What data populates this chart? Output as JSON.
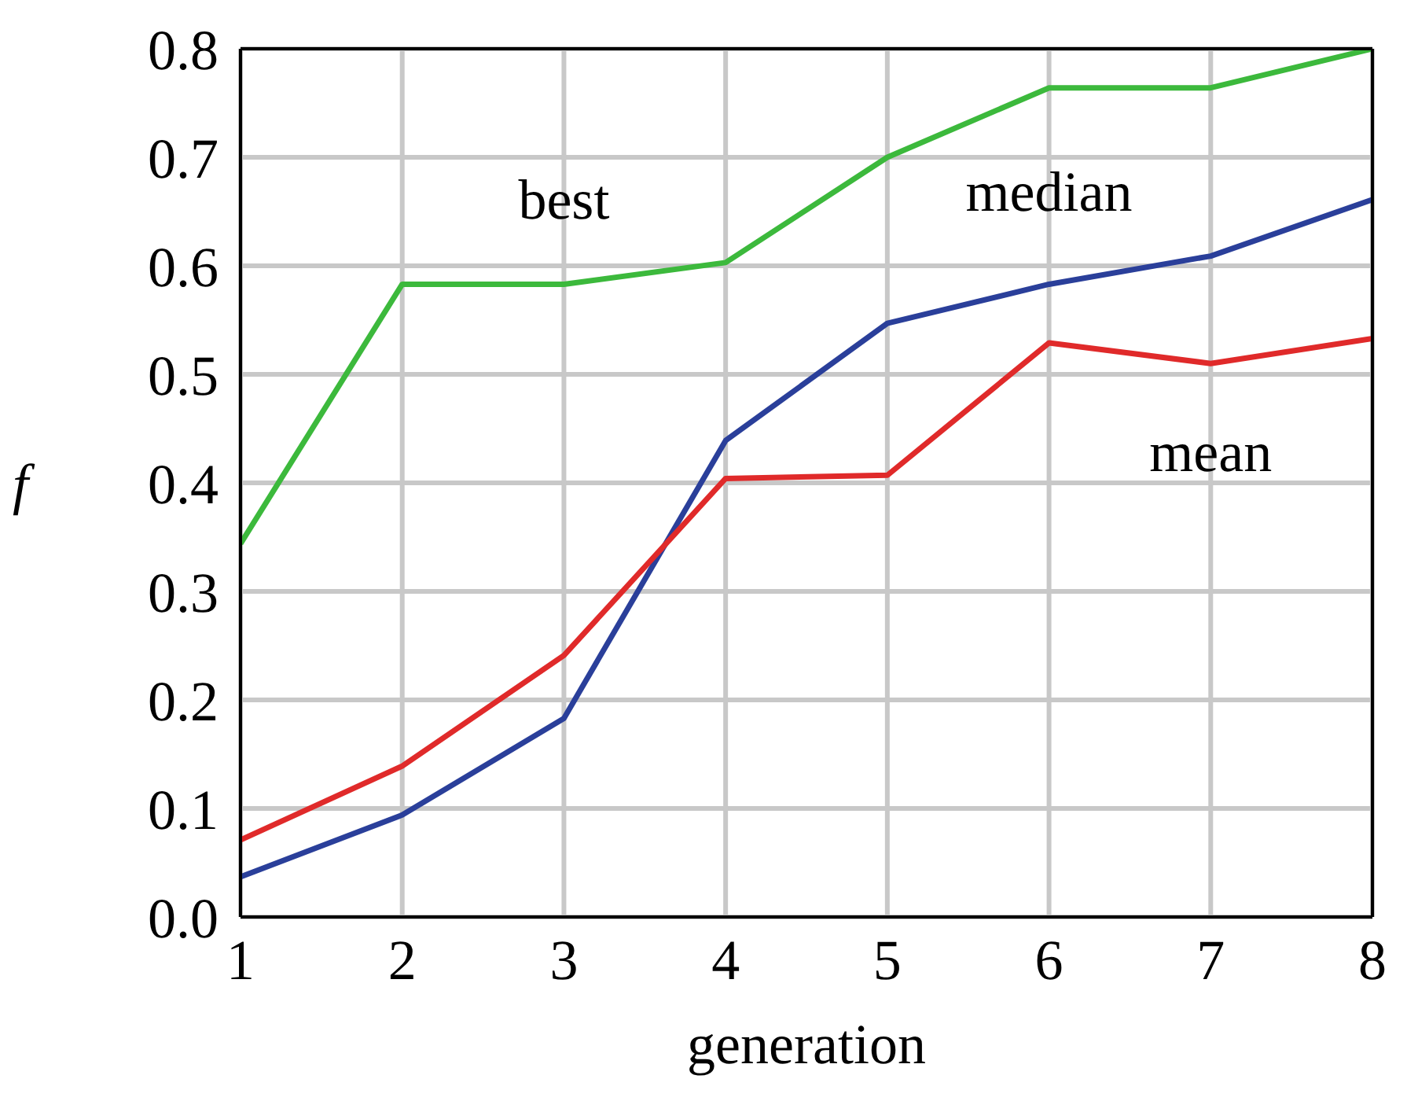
{
  "chart_data": {
    "type": "line",
    "xlabel": "generation",
    "ylabel": "f",
    "x": [
      1,
      2,
      3,
      4,
      5,
      6,
      7,
      8
    ],
    "xlim": [
      1,
      8
    ],
    "xticks": [
      1,
      2,
      3,
      4,
      5,
      6,
      7,
      8
    ],
    "ylim": [
      0,
      0.8
    ],
    "yticks": [
      {
        "value": 0,
        "label": "0.0"
      },
      0.1,
      0.2,
      0.3,
      0.4,
      0.5,
      0.6,
      0.7,
      0.8
    ],
    "grid": true,
    "legend": false,
    "marker": "none",
    "line_style": "solid",
    "series": [
      {
        "name": "best",
        "color": "#3cb93c",
        "values": [
          0.344,
          0.583,
          0.583,
          0.603,
          0.7,
          0.764,
          0.764,
          0.8
        ]
      },
      {
        "name": "median",
        "color": "#2a3f9a",
        "values": [
          0.037,
          0.094,
          0.183,
          0.439,
          0.547,
          0.583,
          0.609,
          0.661
        ]
      },
      {
        "name": "mean",
        "color": "#e02a2a",
        "values": [
          0.071,
          0.139,
          0.241,
          0.404,
          0.407,
          0.529,
          0.51,
          0.533
        ]
      }
    ]
  }
}
